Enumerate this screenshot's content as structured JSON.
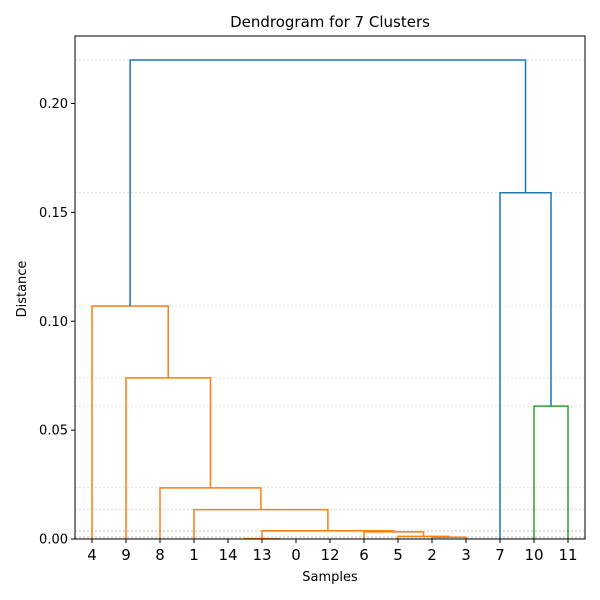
{
  "chart_data": {
    "type": "dendrogram",
    "title": "Dendrogram for 7 Clusters",
    "xlabel": "Samples",
    "ylabel": "Distance",
    "ylim": [
      0,
      0.231
    ],
    "yticks": [
      0.0,
      0.05,
      0.1,
      0.15,
      0.2
    ],
    "ytick_labels": [
      "0.00",
      "0.05",
      "0.10",
      "0.15",
      "0.20"
    ],
    "leaf_order": [
      "4",
      "9",
      "8",
      "1",
      "14",
      "13",
      "0",
      "12",
      "6",
      "5",
      "2",
      "3",
      "7",
      "10",
      "11"
    ],
    "grid_lines": [
      0.22,
      0.159,
      0.107,
      0.074,
      0.061,
      0.0235,
      0.0135,
      0.0038,
      0.0033,
      0.0012,
      0.0008,
      0.0004,
      0.0001
    ],
    "colors": {
      "orange": "#ff7f0e",
      "blue": "#1f77b4",
      "green": "#2ca02c",
      "grid": "#b0b0b0"
    },
    "merges": [
      {
        "left": 4.5,
        "right": 5.5,
        "height": 0.0001,
        "color": "orange"
      },
      {
        "left": 10,
        "right": 11,
        "height": 0.0008,
        "color": "orange"
      },
      {
        "left": 9,
        "right": 10.5,
        "height": 0.0012,
        "color": "orange"
      },
      {
        "left": 8,
        "right": 9.75,
        "height": 0.0033,
        "color": "orange"
      },
      {
        "left": 5,
        "right": 8.875,
        "height": 0.0038,
        "color": "orange"
      },
      {
        "left": 3,
        "right": 6.9375,
        "height": 0.0135,
        "color": "orange"
      },
      {
        "left": 2,
        "right": 4.96875,
        "height": 0.0235,
        "color": "orange"
      },
      {
        "left": 1,
        "right": 3.484375,
        "height": 0.074,
        "color": "orange"
      },
      {
        "left": 0,
        "right": 2.2421875,
        "height": 0.107,
        "color": "orange"
      },
      {
        "left": 13,
        "right": 14,
        "height": 0.061,
        "color": "green"
      },
      {
        "left": 12,
        "right": 13.5,
        "height": 0.159,
        "color": "blue"
      },
      {
        "left": 1.12109375,
        "right": 12.75,
        "height": 0.22,
        "color": "blue"
      }
    ],
    "child_heights": [
      {
        "merge": 0,
        "left_h": 0,
        "right_h": 0
      },
      {
        "merge": 1,
        "left_h": 0,
        "right_h": 0
      },
      {
        "merge": 2,
        "left_h": 0,
        "right_h": 0.0008
      },
      {
        "merge": 3,
        "left_h": 0,
        "right_h": 0.0012
      },
      {
        "merge": 4,
        "left_h": 0.0001,
        "right_h": 0.0033
      },
      {
        "merge": 5,
        "left_h": 0,
        "right_h": 0.0038
      },
      {
        "merge": 6,
        "left_h": 0,
        "right_h": 0.0135
      },
      {
        "merge": 7,
        "left_h": 0,
        "right_h": 0.0235
      },
      {
        "merge": 8,
        "left_h": 0,
        "right_h": 0.074
      },
      {
        "merge": 9,
        "left_h": 0,
        "right_h": 0
      },
      {
        "merge": 10,
        "left_h": 0,
        "right_h": 0.061
      },
      {
        "merge": 11,
        "left_h": 0.107,
        "right_h": 0.159
      }
    ]
  }
}
